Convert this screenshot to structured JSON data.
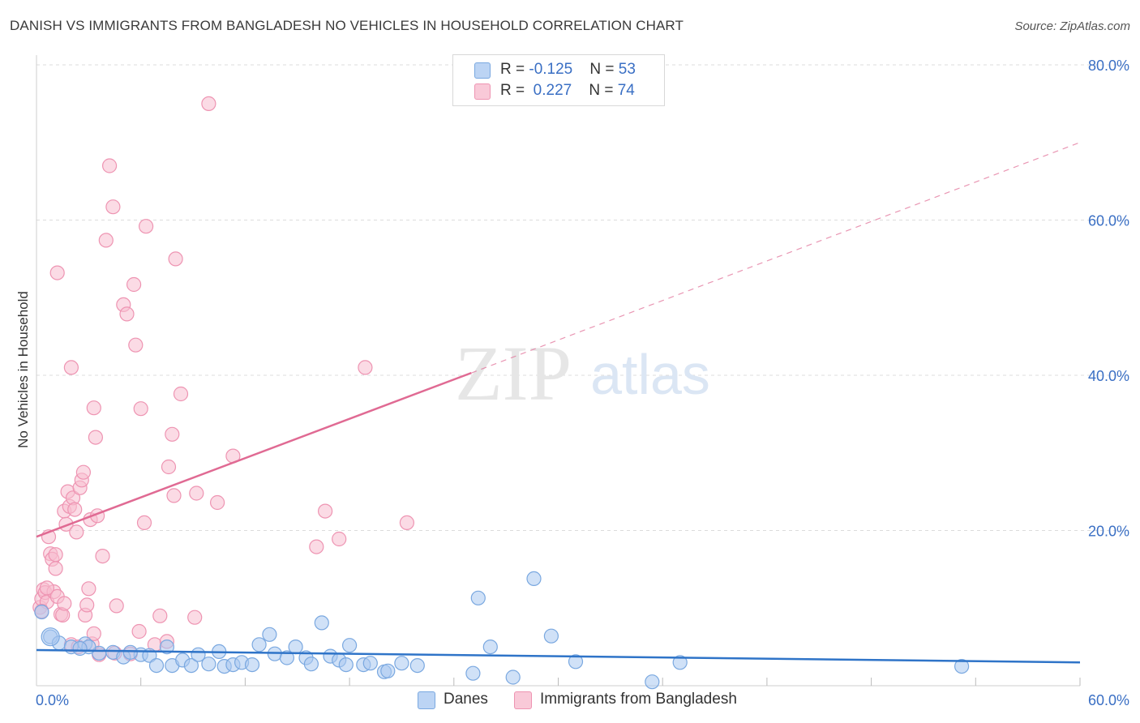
{
  "header": {
    "title": "DANISH VS IMMIGRANTS FROM BANGLADESH NO VEHICLES IN HOUSEHOLD CORRELATION CHART",
    "source": "Source: ZipAtlas.com"
  },
  "watermark": {
    "zip": "ZIP",
    "atlas": "atlas"
  },
  "legend_top": {
    "rows": [
      {
        "r_label": "R = ",
        "r_value": "-0.125",
        "n_label": "N = ",
        "n_value": "53"
      },
      {
        "r_label": "R = ",
        "r_value": " 0.227",
        "n_label": "N = ",
        "n_value": "74"
      }
    ]
  },
  "legend_bottom": {
    "series_1": "Danes",
    "series_2": "Immigrants from Bangladesh"
  },
  "colors": {
    "danes_fill": "#aac8f0",
    "danes_stroke": "#7aa8e0",
    "danes_line": "#2f74c8",
    "bang_fill": "#f7bdd0",
    "bang_stroke": "#ee94b2",
    "bang_line": "#e06a93",
    "axis_label": "#3a6fc4",
    "grid": "#dcdcdc"
  },
  "chart_data": {
    "type": "scatter",
    "title": "DANISH VS IMMIGRANTS FROM BANGLADESH NO VEHICLES IN HOUSEHOLD CORRELATION CHART",
    "xlabel": "",
    "ylabel": "No Vehicles in Household",
    "xlim": [
      0,
      60
    ],
    "ylim": [
      0,
      80
    ],
    "x_tick_labels": [
      "0.0%",
      "60.0%"
    ],
    "y_tick_labels": [
      "20.0%",
      "40.0%",
      "60.0%",
      "80.0%"
    ],
    "y_ticks": [
      20,
      40,
      60,
      80
    ],
    "series": [
      {
        "name": "Danes",
        "R": -0.125,
        "N": 53,
        "trend": {
          "x0": 0,
          "y0": 4.6,
          "x1": 60,
          "y1": 3.0,
          "dashed_from": null
        },
        "points": [
          [
            0.3,
            9.5
          ],
          [
            0.8,
            6.3
          ],
          [
            1.3,
            5.5
          ],
          [
            2.0,
            5.0
          ],
          [
            2.8,
            5.4
          ],
          [
            3.6,
            4.2
          ],
          [
            4.4,
            4.3
          ],
          [
            5.0,
            3.7
          ],
          [
            6.0,
            4.0
          ],
          [
            6.5,
            3.9
          ],
          [
            6.9,
            2.6
          ],
          [
            7.5,
            5.0
          ],
          [
            7.8,
            2.6
          ],
          [
            8.4,
            3.3
          ],
          [
            8.9,
            2.6
          ],
          [
            9.3,
            4.0
          ],
          [
            9.9,
            2.8
          ],
          [
            10.5,
            4.4
          ],
          [
            10.8,
            2.5
          ],
          [
            11.3,
            2.7
          ],
          [
            11.8,
            3.0
          ],
          [
            12.4,
            2.7
          ],
          [
            12.8,
            5.3
          ],
          [
            13.4,
            6.6
          ],
          [
            13.7,
            4.1
          ],
          [
            14.4,
            3.6
          ],
          [
            14.9,
            5.0
          ],
          [
            15.5,
            3.6
          ],
          [
            15.8,
            2.8
          ],
          [
            16.4,
            8.1
          ],
          [
            16.9,
            3.8
          ],
          [
            17.4,
            3.3
          ],
          [
            17.8,
            2.7
          ],
          [
            18.0,
            5.2
          ],
          [
            18.8,
            2.7
          ],
          [
            19.2,
            2.9
          ],
          [
            20.0,
            1.8
          ],
          [
            20.2,
            1.9
          ],
          [
            21.0,
            2.9
          ],
          [
            21.9,
            2.6
          ],
          [
            25.1,
            1.6
          ],
          [
            25.4,
            11.3
          ],
          [
            26.1,
            5.0
          ],
          [
            27.4,
            1.1
          ],
          [
            28.6,
            13.8
          ],
          [
            29.6,
            6.4
          ],
          [
            31.0,
            3.1
          ],
          [
            35.4,
            0.5
          ],
          [
            37.0,
            3.0
          ],
          [
            53.2,
            2.5
          ],
          [
            3.0,
            5.0
          ],
          [
            5.4,
            4.3
          ],
          [
            2.5,
            4.8
          ]
        ]
      },
      {
        "name": "Immigrants from Bangladesh",
        "R": 0.227,
        "N": 74,
        "trend": {
          "x0": 0,
          "y0": 19.2,
          "x1": 25,
          "y1": 40.3,
          "dashed_to_x": 60,
          "dashed_to_y": 70.0
        },
        "points": [
          [
            0.2,
            10.1
          ],
          [
            0.3,
            11.2
          ],
          [
            0.4,
            12.4
          ],
          [
            0.5,
            12.0
          ],
          [
            0.6,
            10.8
          ],
          [
            0.7,
            19.2
          ],
          [
            0.8,
            17.0
          ],
          [
            0.9,
            16.3
          ],
          [
            1.0,
            12.1
          ],
          [
            1.1,
            15.1
          ],
          [
            1.2,
            11.5
          ],
          [
            1.1,
            16.9
          ],
          [
            1.2,
            53.2
          ],
          [
            1.4,
            9.2
          ],
          [
            1.5,
            9.1
          ],
          [
            1.6,
            10.6
          ],
          [
            1.6,
            22.5
          ],
          [
            1.7,
            20.8
          ],
          [
            1.8,
            25.0
          ],
          [
            1.9,
            23.1
          ],
          [
            2.0,
            41.0
          ],
          [
            2.0,
            5.3
          ],
          [
            2.1,
            24.2
          ],
          [
            2.2,
            22.7
          ],
          [
            2.3,
            19.8
          ],
          [
            2.4,
            5.0
          ],
          [
            2.5,
            25.5
          ],
          [
            2.6,
            26.5
          ],
          [
            2.7,
            27.5
          ],
          [
            2.8,
            9.1
          ],
          [
            2.9,
            10.4
          ],
          [
            3.0,
            12.5
          ],
          [
            3.1,
            21.4
          ],
          [
            3.2,
            5.4
          ],
          [
            3.3,
            35.8
          ],
          [
            3.3,
            6.7
          ],
          [
            3.4,
            32.0
          ],
          [
            3.5,
            21.9
          ],
          [
            3.6,
            4.0
          ],
          [
            3.8,
            16.7
          ],
          [
            4.0,
            57.4
          ],
          [
            4.2,
            67.0
          ],
          [
            4.4,
            61.7
          ],
          [
            4.5,
            4.2
          ],
          [
            4.6,
            10.3
          ],
          [
            5.0,
            49.1
          ],
          [
            5.2,
            47.9
          ],
          [
            5.4,
            4.1
          ],
          [
            5.6,
            51.7
          ],
          [
            5.7,
            43.9
          ],
          [
            5.9,
            7.0
          ],
          [
            6.0,
            35.7
          ],
          [
            6.2,
            21.0
          ],
          [
            6.3,
            59.2
          ],
          [
            6.8,
            5.3
          ],
          [
            7.1,
            9.0
          ],
          [
            7.5,
            5.7
          ],
          [
            7.6,
            28.2
          ],
          [
            7.8,
            32.4
          ],
          [
            7.9,
            24.5
          ],
          [
            8.0,
            55.0
          ],
          [
            8.3,
            37.6
          ],
          [
            9.1,
            8.8
          ],
          [
            9.2,
            24.8
          ],
          [
            9.9,
            75.0
          ],
          [
            10.4,
            23.6
          ],
          [
            11.3,
            29.6
          ],
          [
            16.1,
            17.9
          ],
          [
            16.6,
            22.5
          ],
          [
            17.4,
            18.9
          ],
          [
            18.9,
            41.0
          ],
          [
            21.3,
            21.0
          ],
          [
            0.3,
            9.6
          ],
          [
            0.6,
            12.6
          ]
        ]
      }
    ]
  }
}
